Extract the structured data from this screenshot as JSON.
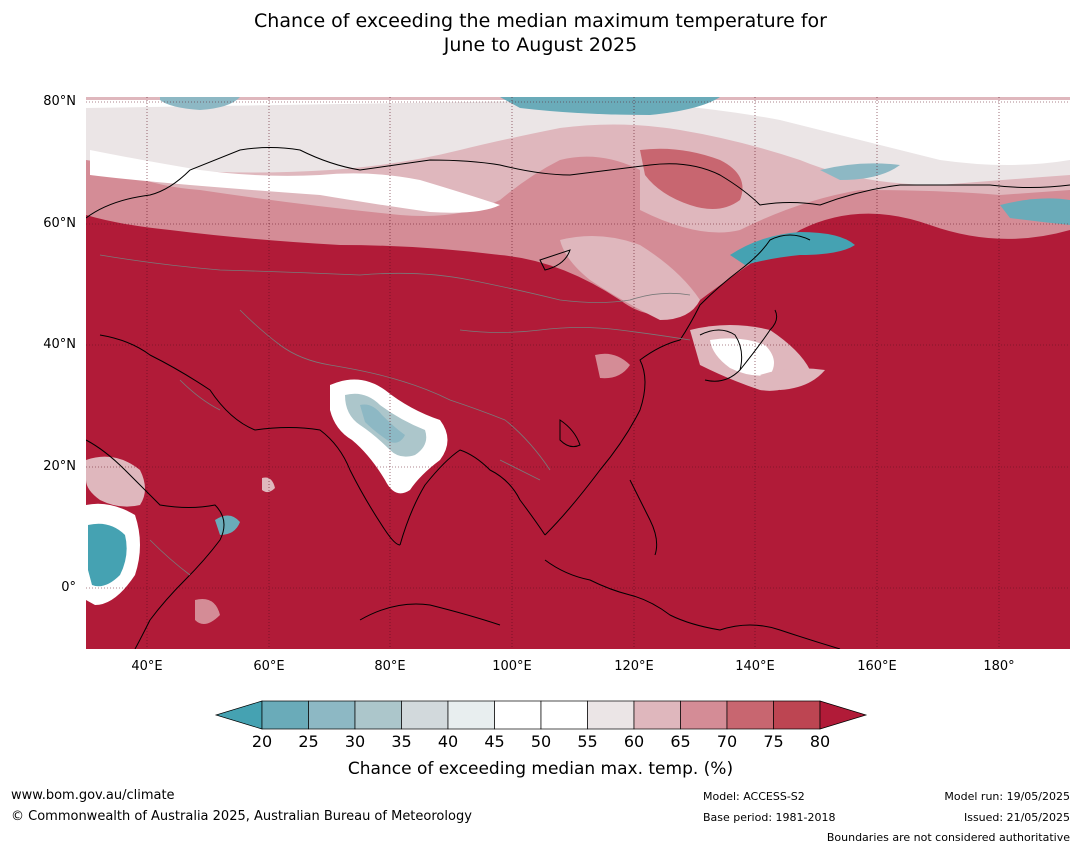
{
  "title": {
    "line1": "Chance of exceeding the median maximum temperature for",
    "line2": "June to August 2025"
  },
  "map": {
    "lat_labels": [
      "80°N",
      "60°N",
      "40°N",
      "20°N",
      "0°"
    ],
    "lon_labels": [
      "40°E",
      "60°E",
      "80°E",
      "100°E",
      "120°E",
      "140°E",
      "160°E",
      "180°"
    ],
    "background_color": "#b11b38"
  },
  "colorbar": {
    "ticks": [
      "20",
      "25",
      "30",
      "35",
      "40",
      "45",
      "50",
      "55",
      "60",
      "65",
      "70",
      "75",
      "80"
    ],
    "colors": [
      "#45a2b2",
      "#6aabb9",
      "#8db8c4",
      "#acc6cb",
      "#d2d9dc",
      "#e8eeef",
      "#ffffff",
      "#ffffff",
      "#ebe5e6",
      "#dfb7bd",
      "#d48c96",
      "#c86670",
      "#bd4552",
      "#b11b38"
    ],
    "label": "Chance of exceeding median max. temp. (%)"
  },
  "footer": {
    "url": "www.bom.gov.au/climate",
    "copyright": "© Commonwealth of Australia 2025, Australian Bureau of Meteorology",
    "model": "Model: ACCESS-S2",
    "base_period": "Base period: 1981-2018",
    "model_run": "Model run: 19/05/2025",
    "issued": "Issued: 21/05/2025",
    "disclaimer": "Boundaries are not considered authoritative"
  }
}
